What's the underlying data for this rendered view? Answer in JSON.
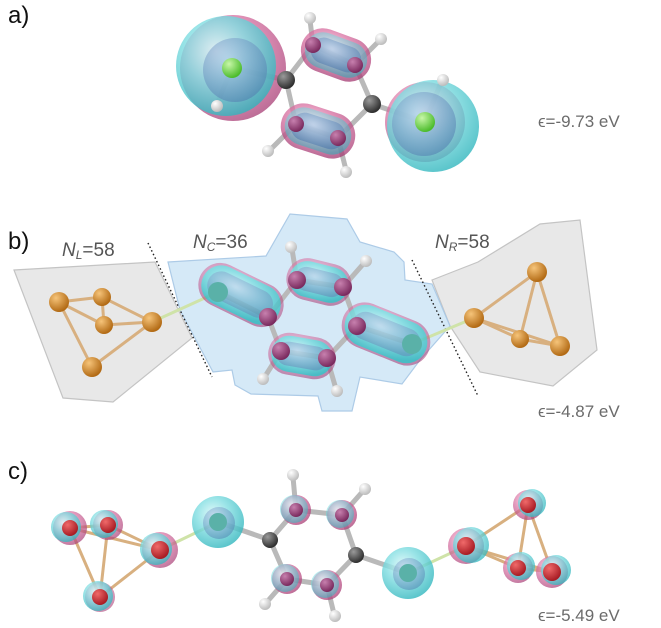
{
  "panels": {
    "a": {
      "label": "a)",
      "energy": "ϵ=-9.73 eV"
    },
    "b": {
      "label": "b)",
      "energy": "ϵ=-4.87 eV",
      "left": {
        "sym": "N",
        "sub": "L",
        "value": "=58"
      },
      "center": {
        "sym": "N",
        "sub": "C",
        "value": "=36"
      },
      "right": {
        "sym": "N",
        "sub": "R",
        "value": "=58"
      }
    },
    "c": {
      "label": "c)",
      "energy": "ϵ=-5.49 eV"
    }
  },
  "colors": {
    "cyan_lobe": "#5fd3d8",
    "magenta_lobe": "#d8609a",
    "carbon": "#4a4a4a",
    "hydrogen": "#e6e6e6",
    "chlorine_sulfur": "#7ed957",
    "gold": "#d58a2a",
    "region_fill_side": "#e6e6e6",
    "region_fill_center": "#cfe6f6"
  }
}
